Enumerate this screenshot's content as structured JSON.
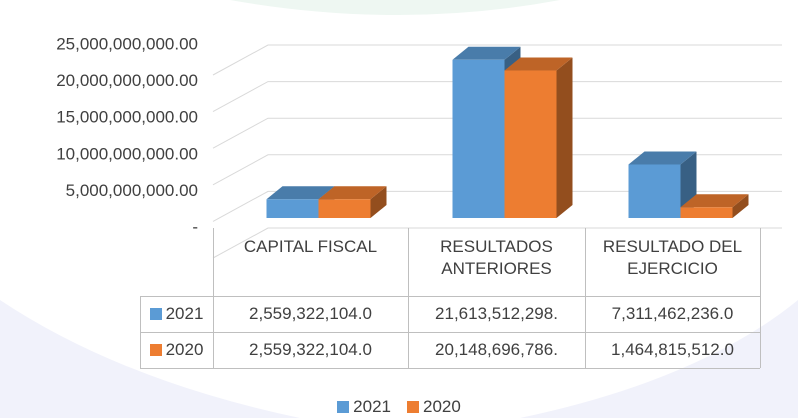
{
  "chart_data": {
    "type": "bar3d",
    "categories": [
      "CAPITAL FISCAL",
      "RESULTADOS ANTERIORES",
      "RESULTADO DEL EJERCICIO"
    ],
    "series": [
      {
        "name": "2021",
        "color": "#5b9bd5",
        "values": [
          2559322104,
          21613512298,
          7311462236
        ],
        "value_labels": [
          "2,559,322,104.0",
          "21,613,512,298.",
          "7,311,462,236.0"
        ]
      },
      {
        "name": "2020",
        "color": "#ed7d31",
        "values": [
          2559322104,
          20148696786,
          1464815512
        ],
        "value_labels": [
          "2,559,322,104.0",
          "20,148,696,786.",
          "1,464,815,512.0"
        ]
      }
    ],
    "ylim": [
      0,
      25000000000
    ],
    "yticks": [
      {
        "value": 0,
        "label": "-"
      },
      {
        "value": 5000000000,
        "label": "5,000,000,000.00"
      },
      {
        "value": 10000000000,
        "label": "10,000,000,000.00"
      },
      {
        "value": 15000000000,
        "label": "15,000,000,000.00"
      },
      {
        "value": 20000000000,
        "label": "20,000,000,000.00"
      },
      {
        "value": 25000000000,
        "label": "25,000,000,000.00"
      }
    ],
    "grid": true,
    "legend": "bottom"
  }
}
